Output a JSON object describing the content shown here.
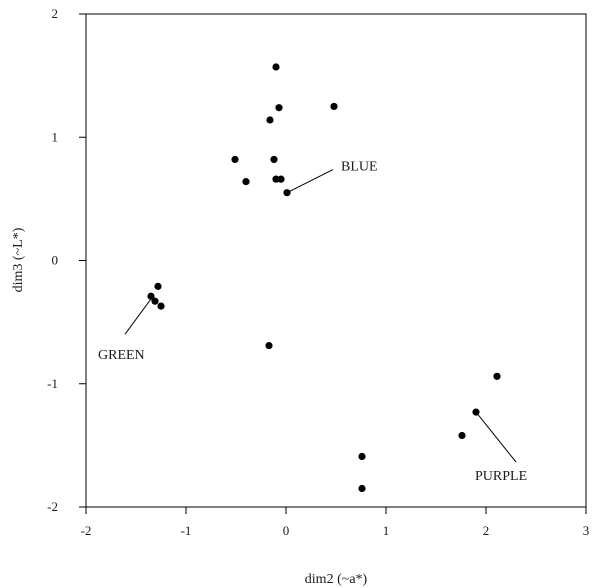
{
  "chart_data": {
    "type": "scatter",
    "title": "",
    "xlabel": "dim2 (~a*)",
    "ylabel": "dim3 (~L*)",
    "xlim": [
      -2,
      3
    ],
    "ylim": [
      -2,
      2
    ],
    "xticks": [
      -2,
      -1,
      0,
      1,
      2,
      3
    ],
    "yticks": [
      -2,
      -1,
      0,
      1,
      2
    ],
    "xtick_labels": [
      "-2",
      "-1",
      "0",
      "1",
      "2",
      "3"
    ],
    "ytick_labels": [
      "-2",
      "-1",
      "0",
      "1",
      "2"
    ],
    "grid": false,
    "points": [
      {
        "x": -0.1,
        "y": 1.57
      },
      {
        "x": -0.07,
        "y": 1.24
      },
      {
        "x": -0.16,
        "y": 1.14
      },
      {
        "x": 0.48,
        "y": 1.25
      },
      {
        "x": -0.51,
        "y": 0.82
      },
      {
        "x": -0.12,
        "y": 0.82
      },
      {
        "x": -0.4,
        "y": 0.64
      },
      {
        "x": -0.1,
        "y": 0.66
      },
      {
        "x": -0.05,
        "y": 0.66
      },
      {
        "x": 0.01,
        "y": 0.55
      },
      {
        "x": -1.28,
        "y": -0.21
      },
      {
        "x": -1.35,
        "y": -0.29
      },
      {
        "x": -1.31,
        "y": -0.33
      },
      {
        "x": -1.25,
        "y": -0.37
      },
      {
        "x": -0.17,
        "y": -0.69
      },
      {
        "x": 2.11,
        "y": -0.94
      },
      {
        "x": 1.9,
        "y": -1.23
      },
      {
        "x": 1.76,
        "y": -1.42
      },
      {
        "x": 0.76,
        "y": -1.59
      },
      {
        "x": 0.76,
        "y": -1.85
      }
    ],
    "annotations": [
      {
        "text": "BLUE",
        "point": [
          0.01,
          0.55
        ],
        "label": [
          0.55,
          0.77
        ]
      },
      {
        "text": "GREEN",
        "point": [
          -1.33,
          -0.29
        ],
        "label": [
          -1.88,
          -0.76
        ]
      },
      {
        "text": "PURPLE",
        "point": [
          1.9,
          -1.23
        ],
        "label": [
          1.89,
          -1.74
        ]
      }
    ]
  }
}
